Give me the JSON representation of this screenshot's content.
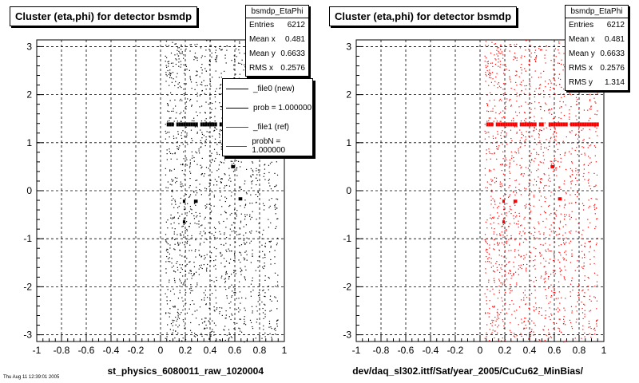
{
  "colors": {
    "dots_left": "#000000",
    "dots_right": "#ff0000",
    "grid": "#000000"
  },
  "chart_data": [
    {
      "type": "scatter",
      "title": "Cluster (eta,phi) for detector bsmdp",
      "xlabel": "st_physics_6080011_raw_1020004",
      "ylabel": "",
      "xlim": [
        -1,
        1
      ],
      "ylim": [
        -3.14,
        3.14
      ],
      "xticks": [
        "-1",
        "-0.8",
        "-0.6",
        "-0.4",
        "-0.2",
        "0",
        "0.2",
        "0.4",
        "0.6",
        "0.8",
        "1"
      ],
      "yticks": [
        "-3",
        "-2",
        "-1",
        "0",
        "1",
        "2",
        "3"
      ],
      "grid": true,
      "marker_color": "#000000",
      "stats": {
        "name": "bsmdp_EtaPhi",
        "rows": [
          {
            "label": "Entries",
            "value": "6212"
          },
          {
            "label": "Mean x",
            "value": "0.481"
          },
          {
            "label": "Mean y",
            "value": "0.6633"
          },
          {
            "label": "RMS x",
            "value": "0.2576"
          }
        ]
      },
      "legend": {
        "placement": "top-right",
        "entries": [
          {
            "label": "_file0 (new)",
            "color": "#000000"
          },
          {
            "label": "prob = 1.000000",
            "color": "#000000"
          },
          {
            "label": "_file1 (ref)",
            "color": "#ff0000"
          },
          {
            "label": "probN = 1.000000",
            "color": "#ff0000"
          }
        ]
      },
      "column_eta": [
        0.05,
        0.08,
        0.11,
        0.14,
        0.17,
        0.2,
        0.24,
        0.28,
        0.32,
        0.36,
        0.4,
        0.44,
        0.48,
        0.52,
        0.56,
        0.6,
        0.64,
        0.68,
        0.73,
        0.78,
        0.83,
        0.88,
        0.93
      ],
      "band_phi": 1.38,
      "band_eta": [
        0.05,
        0.95
      ],
      "clusters": [
        {
          "eta": [
            0.18,
            0.2
          ],
          "phi": -0.22
        },
        {
          "eta": [
            0.27,
            0.3
          ],
          "phi": -0.22
        },
        {
          "eta": [
            0.63,
            0.66
          ],
          "phi": -0.17
        },
        {
          "eta": [
            0.18,
            0.2
          ],
          "phi": -0.65
        },
        {
          "eta": [
            0.57,
            0.6
          ],
          "phi": 0.5
        }
      ]
    },
    {
      "type": "scatter",
      "title": "Cluster (eta,phi) for detector bsmdp",
      "xlabel": "dev/daq_sl302.ittf/Sat/year_2005/CuCu62_MinBias/",
      "ylabel": "",
      "xlim": [
        -1,
        1
      ],
      "ylim": [
        -3.14,
        3.14
      ],
      "xticks": [
        "-1",
        "-0.8",
        "-0.6",
        "-0.4",
        "-0.2",
        "0",
        "0.2",
        "0.4",
        "0.6",
        "0.8",
        "1"
      ],
      "yticks": [
        "-3",
        "-2",
        "-1",
        "0",
        "1",
        "2",
        "3"
      ],
      "grid": true,
      "marker_color": "#ff0000",
      "stats": {
        "name": "bsmdp_EtaPhi",
        "rows": [
          {
            "label": "Entries",
            "value": "6212"
          },
          {
            "label": "Mean x",
            "value": "0.481"
          },
          {
            "label": "Mean y",
            "value": "0.6633"
          },
          {
            "label": "RMS x",
            "value": "0.2576"
          },
          {
            "label": "RMS y",
            "value": "1.314"
          }
        ]
      },
      "column_eta": [
        0.05,
        0.08,
        0.11,
        0.14,
        0.17,
        0.2,
        0.24,
        0.28,
        0.32,
        0.36,
        0.4,
        0.44,
        0.48,
        0.52,
        0.56,
        0.6,
        0.64,
        0.68,
        0.73,
        0.78,
        0.83,
        0.88,
        0.93
      ],
      "band_phi": 1.38,
      "band_eta": [
        0.05,
        0.95
      ],
      "clusters": [
        {
          "eta": [
            0.18,
            0.2
          ],
          "phi": -0.22
        },
        {
          "eta": [
            0.27,
            0.3
          ],
          "phi": -0.22
        },
        {
          "eta": [
            0.63,
            0.66
          ],
          "phi": -0.17
        },
        {
          "eta": [
            0.18,
            0.2
          ],
          "phi": -0.65
        },
        {
          "eta": [
            0.57,
            0.6
          ],
          "phi": 0.5
        }
      ]
    }
  ],
  "footnote": "Thu Aug 11 12:39:01 2005"
}
